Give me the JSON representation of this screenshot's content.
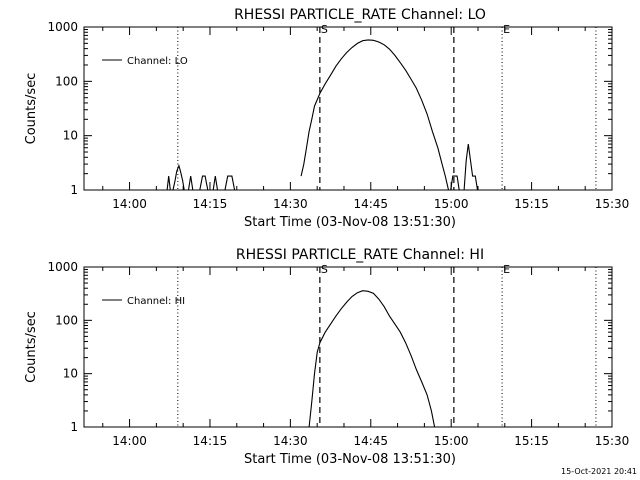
{
  "timestamp": "15-Oct-2021 20:41",
  "chart_data": [
    {
      "type": "line",
      "title": "RHESSI PARTICLE_RATE Channel: LO",
      "xlabel": "Start Time (03-Nov-08 13:51:30)",
      "ylabel": "Counts/sec",
      "x_unit": "minutes after 13:51:30",
      "x_range": [
        0,
        98.5
      ],
      "y_scale": "log",
      "y_range": [
        1,
        1000
      ],
      "x_ticks": [
        "14:00",
        "14:15",
        "14:30",
        "14:45",
        "15:00",
        "15:15",
        "15:30"
      ],
      "x_tick_positions": [
        8.5,
        23.5,
        38.5,
        53.5,
        68.5,
        83.5,
        98.5
      ],
      "y_ticks": [
        "1",
        "10",
        "100",
        "1000"
      ],
      "y_tick_values": [
        1,
        10,
        100,
        1000
      ],
      "grid": false,
      "legend": {
        "position": "top-left",
        "entries": [
          "Channel: LO"
        ]
      },
      "markers": [
        {
          "label": "",
          "style": "dotted",
          "x": 17.5
        },
        {
          "label": "S",
          "style": "dashed",
          "x": 44.0
        },
        {
          "label": "",
          "style": "dashed",
          "x": 69.0
        },
        {
          "label": "E",
          "style": "dotted",
          "x": 78.0
        },
        {
          "label": "",
          "style": "dotted",
          "x": 95.5
        }
      ],
      "series": [
        {
          "name": "Channel: LO",
          "segments": [
            [
              [
                15.5,
                1
              ],
              [
                15.8,
                1.8
              ],
              [
                16.1,
                1
              ]
            ],
            [
              [
                16.6,
                1
              ],
              [
                17.0,
                1.5
              ],
              [
                17.3,
                2.2
              ],
              [
                17.7,
                2.8
              ],
              [
                18.0,
                2.2
              ],
              [
                18.4,
                1.5
              ],
              [
                18.7,
                1
              ]
            ],
            [
              [
                19.5,
                1
              ],
              [
                19.9,
                1.8
              ],
              [
                20.3,
                1
              ]
            ],
            [
              [
                21.6,
                1
              ],
              [
                22.1,
                1.8
              ],
              [
                22.6,
                1.8
              ],
              [
                23.1,
                1
              ]
            ],
            [
              [
                24.1,
                1
              ],
              [
                24.5,
                1.8
              ],
              [
                24.9,
                1
              ]
            ],
            [
              [
                26.3,
                1
              ],
              [
                26.8,
                1.8
              ],
              [
                27.6,
                1.8
              ],
              [
                28.1,
                1
              ]
            ],
            [
              [
                40.5,
                1.8
              ],
              [
                41.0,
                3
              ],
              [
                41.5,
                6
              ],
              [
                42.0,
                12
              ],
              [
                42.5,
                20
              ],
              [
                43.0,
                35
              ],
              [
                44.0,
                60
              ],
              [
                45.0,
                90
              ],
              [
                46.0,
                130
              ],
              [
                47.0,
                190
              ],
              [
                48.0,
                260
              ],
              [
                49.0,
                340
              ],
              [
                50.0,
                420
              ],
              [
                51.0,
                500
              ],
              [
                52.0,
                560
              ],
              [
                53.0,
                580
              ],
              [
                54.0,
                570
              ],
              [
                55.0,
                530
              ],
              [
                56.0,
                470
              ],
              [
                57.0,
                390
              ],
              [
                58.0,
                300
              ],
              [
                59.0,
                220
              ],
              [
                60.0,
                160
              ],
              [
                61.0,
                110
              ],
              [
                62.0,
                75
              ],
              [
                63.0,
                45
              ],
              [
                64.0,
                25
              ],
              [
                65.0,
                12
              ],
              [
                66.0,
                6
              ],
              [
                66.8,
                3
              ],
              [
                67.4,
                1.8
              ],
              [
                68.0,
                1
              ]
            ],
            [
              [
                68.4,
                1
              ],
              [
                68.8,
                1.8
              ],
              [
                69.6,
                1.8
              ],
              [
                70.0,
                1
              ]
            ],
            [
              [
                70.9,
                1
              ],
              [
                71.3,
                3.5
              ],
              [
                71.7,
                7
              ],
              [
                72.1,
                3.5
              ],
              [
                72.5,
                1.8
              ],
              [
                73.0,
                1.8
              ],
              [
                73.4,
                1
              ]
            ]
          ]
        }
      ]
    },
    {
      "type": "line",
      "title": "RHESSI PARTICLE_RATE Channel: HI",
      "xlabel": "Start Time (03-Nov-08 13:51:30)",
      "ylabel": "Counts/sec",
      "x_unit": "minutes after 13:51:30",
      "x_range": [
        0,
        98.5
      ],
      "y_scale": "log",
      "y_range": [
        1,
        1000
      ],
      "x_ticks": [
        "14:00",
        "14:15",
        "14:30",
        "14:45",
        "15:00",
        "15:15",
        "15:30"
      ],
      "x_tick_positions": [
        8.5,
        23.5,
        38.5,
        53.5,
        68.5,
        83.5,
        98.5
      ],
      "y_ticks": [
        "1",
        "10",
        "100",
        "1000"
      ],
      "y_tick_values": [
        1,
        10,
        100,
        1000
      ],
      "grid": false,
      "legend": {
        "position": "top-left",
        "entries": [
          "Channel: HI"
        ]
      },
      "markers": [
        {
          "label": "",
          "style": "dotted",
          "x": 17.5
        },
        {
          "label": "S",
          "style": "dashed",
          "x": 44.0
        },
        {
          "label": "",
          "style": "dashed",
          "x": 69.0
        },
        {
          "label": "E",
          "style": "dotted",
          "x": 78.0
        },
        {
          "label": "",
          "style": "dotted",
          "x": 95.5
        }
      ],
      "series": [
        {
          "name": "Channel: HI",
          "segments": [
            [
              [
                42.0,
                1
              ],
              [
                42.5,
                3
              ],
              [
                43.0,
                10
              ],
              [
                43.5,
                25
              ],
              [
                44.0,
                38
              ],
              [
                45.0,
                60
              ],
              [
                46.0,
                85
              ],
              [
                47.0,
                120
              ],
              [
                48.0,
                165
              ],
              [
                49.0,
                220
              ],
              [
                50.0,
                280
              ],
              [
                51.0,
                330
              ],
              [
                52.0,
                360
              ],
              [
                53.0,
                350
              ],
              [
                54.0,
                320
              ],
              [
                55.0,
                250
              ],
              [
                56.0,
                180
              ],
              [
                57.0,
                120
              ],
              [
                58.0,
                85
              ],
              [
                59.0,
                60
              ],
              [
                60.0,
                38
              ],
              [
                61.0,
                22
              ],
              [
                62.0,
                12
              ],
              [
                63.0,
                7
              ],
              [
                64.0,
                4
              ],
              [
                64.8,
                2
              ],
              [
                65.4,
                1
              ]
            ]
          ]
        }
      ]
    }
  ]
}
